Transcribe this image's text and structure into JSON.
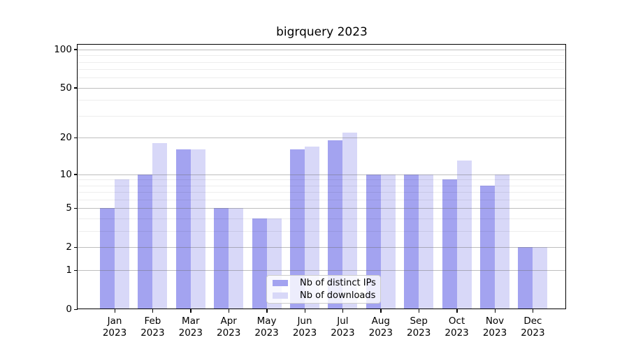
{
  "title": "bigrquery 2023",
  "chart_data": {
    "type": "bar",
    "title": "bigrquery 2023",
    "categories": [
      "Jan 2023",
      "Feb 2023",
      "Mar 2023",
      "Apr 2023",
      "May 2023",
      "Jun 2023",
      "Jul 2023",
      "Aug 2023",
      "Sep 2023",
      "Oct 2023",
      "Nov 2023",
      "Dec 2023"
    ],
    "series": [
      {
        "name": "Nb of distinct IPs",
        "color": "#a3a3f0",
        "values": [
          5,
          10,
          16,
          5,
          4,
          16,
          19,
          10,
          10,
          9,
          8,
          2
        ]
      },
      {
        "name": "Nb of downloads",
        "color": "#d8d8f8",
        "values": [
          9,
          18,
          16,
          5,
          4,
          17,
          22,
          10,
          10,
          13,
          10,
          2
        ]
      }
    ],
    "xlabel": "",
    "ylabel": "",
    "yscale": "log1p",
    "ylim": [
      0,
      101
    ],
    "y_major_ticks": [
      0,
      1,
      2,
      5,
      10,
      20,
      50,
      100
    ],
    "y_minor_ticks": [
      3,
      4,
      6,
      7,
      8,
      9,
      30,
      40,
      60,
      70,
      80,
      90
    ],
    "grid": true,
    "grid_color_major": "#c2c2c2",
    "grid_color_minor": "#ededed",
    "legend_position": "lower center"
  }
}
